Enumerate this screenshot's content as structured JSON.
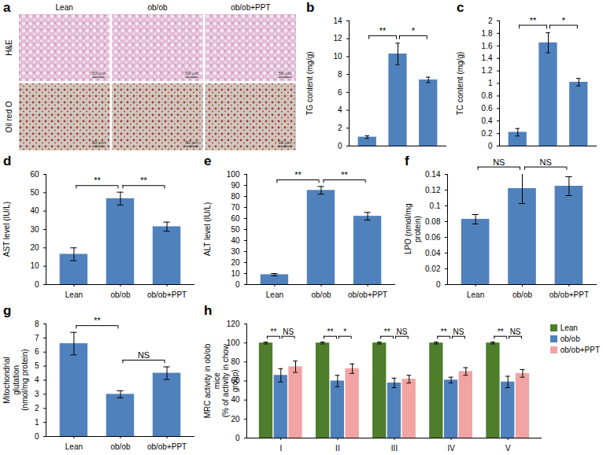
{
  "chart_data": [
    {
      "panel": "a",
      "type": "images",
      "columns": [
        "Lean",
        "ob/ob",
        "ob/ob+PPT"
      ],
      "rows": [
        "H&E",
        "Oil red O"
      ],
      "scale_bar": "50 μm"
    },
    {
      "panel": "b",
      "type": "bar",
      "categories": [
        null,
        null,
        null
      ],
      "values": [
        1.0,
        10.3,
        7.4
      ],
      "errors": [
        0.15,
        1.2,
        0.3
      ],
      "y_label": "TG content (mg/g)",
      "ylim": [
        0,
        14
      ],
      "yticks": [
        0,
        2,
        4,
        6,
        8,
        10,
        12,
        14
      ],
      "color": "#4f81bd",
      "tick_labels": "y",
      "comparisons": [
        {
          "pair": [
            0,
            1
          ],
          "label": "**"
        },
        {
          "pair": [
            1,
            2
          ],
          "label": "*"
        }
      ]
    },
    {
      "panel": "c",
      "type": "bar",
      "categories": [
        null,
        null,
        null
      ],
      "values": [
        0.22,
        1.65,
        1.02
      ],
      "errors": [
        0.06,
        0.16,
        0.06
      ],
      "y_label": "TC content (mg/g)",
      "ylim": [
        0,
        2
      ],
      "yticks": [
        0,
        0.2,
        0.4,
        0.6,
        0.8,
        1,
        1.2,
        1.4,
        1.6,
        1.8,
        2
      ],
      "color": "#4f81bd",
      "tick_labels": "y",
      "comparisons": [
        {
          "pair": [
            0,
            1
          ],
          "label": "**"
        },
        {
          "pair": [
            1,
            2
          ],
          "label": "*"
        }
      ]
    },
    {
      "panel": "d",
      "type": "bar",
      "categories": [
        "Lean",
        "ob/ob",
        "ob/ob+PPT"
      ],
      "values": [
        16.5,
        46.8,
        31.5
      ],
      "errors": [
        3.5,
        3.5,
        2.5
      ],
      "y_label": "AST level (IU/L)",
      "ylim": [
        0,
        60
      ],
      "yticks": [
        0,
        10,
        20,
        30,
        40,
        50,
        60
      ],
      "color": "#4f81bd",
      "comparisons": [
        {
          "pair": [
            0,
            1
          ],
          "label": "**"
        },
        {
          "pair": [
            1,
            2
          ],
          "label": "**"
        }
      ]
    },
    {
      "panel": "e",
      "type": "bar",
      "categories": [
        "Lean",
        "ob/ob",
        "ob/ob+PPT"
      ],
      "values": [
        9,
        85.5,
        62
      ],
      "errors": [
        1,
        3.5,
        3.5
      ],
      "y_label": "ALT level (IU/L)",
      "ylim": [
        0,
        100
      ],
      "yticks": [
        0,
        10,
        20,
        30,
        40,
        50,
        60,
        70,
        80,
        90,
        100
      ],
      "color": "#4f81bd",
      "comparisons": [
        {
          "pair": [
            0,
            1
          ],
          "label": "**"
        },
        {
          "pair": [
            1,
            2
          ],
          "label": "**"
        }
      ]
    },
    {
      "panel": "f",
      "type": "bar",
      "categories": [
        "Lean",
        "ob/ob",
        "ob/ob+PPT"
      ],
      "values": [
        0.083,
        0.122,
        0.125
      ],
      "errors": [
        0.006,
        0.019,
        0.012
      ],
      "y_label": "LPO (nmol/mg protein)",
      "ylim": [
        0,
        0.14
      ],
      "yticks": [
        0,
        0.02,
        0.04,
        0.06,
        0.08,
        0.1,
        0.12,
        0.14
      ],
      "color": "#4f81bd",
      "comparisons": [
        {
          "pair": [
            0,
            1
          ],
          "label": "NS"
        },
        {
          "pair": [
            1,
            2
          ],
          "label": "NS"
        }
      ]
    },
    {
      "panel": "g",
      "type": "bar",
      "categories": [
        "Lean",
        "ob/ob",
        "ob/ob+PPT"
      ],
      "values": [
        6.6,
        3.0,
        4.5
      ],
      "errors": [
        0.8,
        0.25,
        0.45
      ],
      "y_label": "Mitochondrial glutation\n(nmol/mg protein)",
      "ylim": [
        0,
        8
      ],
      "yticks": [
        0,
        1,
        2,
        3,
        4,
        5,
        6,
        7,
        8
      ],
      "color": "#4f81bd",
      "comparisons": [
        {
          "pair": [
            0,
            1
          ],
          "label": "**"
        },
        {
          "pair": [
            1,
            2
          ],
          "label": "NS"
        }
      ]
    },
    {
      "panel": "h",
      "type": "bar",
      "categories": [
        "I",
        "II",
        "III",
        "IV",
        "V"
      ],
      "series": [
        {
          "name": "Lean",
          "color": "#4e7d2c",
          "values": [
            100,
            100,
            100,
            100,
            100
          ],
          "errors": [
            1,
            1,
            1,
            1,
            1
          ]
        },
        {
          "name": "ob/ob",
          "color": "#4f81bd",
          "values": [
            66,
            60,
            58,
            61,
            59
          ],
          "errors": [
            7,
            6,
            5,
            3,
            6
          ]
        },
        {
          "name": "ob/ob+PPT",
          "color": "#f2a3a3",
          "values": [
            75,
            73,
            62,
            70,
            68
          ],
          "errors": [
            6,
            5,
            4,
            4,
            4
          ]
        }
      ],
      "y_label": "MRC activity in ob/ob mice\n(% of activity in chow group)",
      "ylim": [
        0,
        120
      ],
      "yticks": [
        0,
        20,
        40,
        60,
        80,
        100,
        120
      ],
      "legend": "right",
      "comparisons": [
        {
          "pair": [
            0,
            1
          ],
          "labels": [
            "**",
            "**",
            "**",
            "**",
            "**"
          ]
        },
        {
          "pair": [
            1,
            2
          ],
          "labels": [
            "NS",
            "*",
            "NS",
            "NS",
            "NS"
          ]
        }
      ]
    }
  ]
}
